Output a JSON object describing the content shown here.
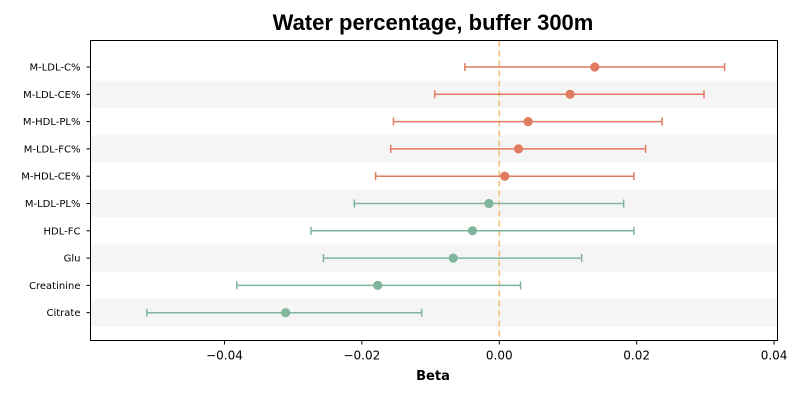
{
  "chart_data": {
    "type": "forest",
    "title": "Water percentage, buffer 300m",
    "xlabel": "Beta",
    "xlim": [
      -0.0595,
      0.0405
    ],
    "xticks": [
      -0.04,
      -0.02,
      0.0,
      0.02,
      0.04
    ],
    "xtick_labels": [
      "−0.04",
      "−0.02",
      "0.00",
      "0.02",
      "0.04"
    ],
    "reference_line": {
      "x": 0.0,
      "style": "dashed",
      "color": "#F5C27E"
    },
    "colors": {
      "positive": "#E07B5F",
      "negative": "#7FB59A",
      "band": "#F5F5F5"
    },
    "rows": [
      {
        "label": "M-LDL-C%",
        "beta": 0.0139,
        "ci_low": -0.005,
        "ci_high": 0.0328
      },
      {
        "label": "M-LDL-CE%",
        "beta": 0.0103,
        "ci_low": -0.0094,
        "ci_high": 0.0298
      },
      {
        "label": "M-HDL-PL%",
        "beta": 0.0042,
        "ci_low": -0.0154,
        "ci_high": 0.0237
      },
      {
        "label": "M-LDL-FC%",
        "beta": 0.0028,
        "ci_low": -0.0158,
        "ci_high": 0.0213
      },
      {
        "label": "M-HDL-CE%",
        "beta": 0.0008,
        "ci_low": -0.018,
        "ci_high": 0.0196
      },
      {
        "label": "M-LDL-PL%",
        "beta": -0.0015,
        "ci_low": -0.0211,
        "ci_high": 0.0181
      },
      {
        "label": "HDL-FC",
        "beta": -0.0039,
        "ci_low": -0.0274,
        "ci_high": 0.0196
      },
      {
        "label": "Glu",
        "beta": -0.0067,
        "ci_low": -0.0256,
        "ci_high": 0.012
      },
      {
        "label": "Creatinine",
        "beta": -0.0177,
        "ci_low": -0.0382,
        "ci_high": 0.0031
      },
      {
        "label": "Citrate",
        "beta": -0.0311,
        "ci_low": -0.0513,
        "ci_high": -0.0113
      }
    ]
  }
}
